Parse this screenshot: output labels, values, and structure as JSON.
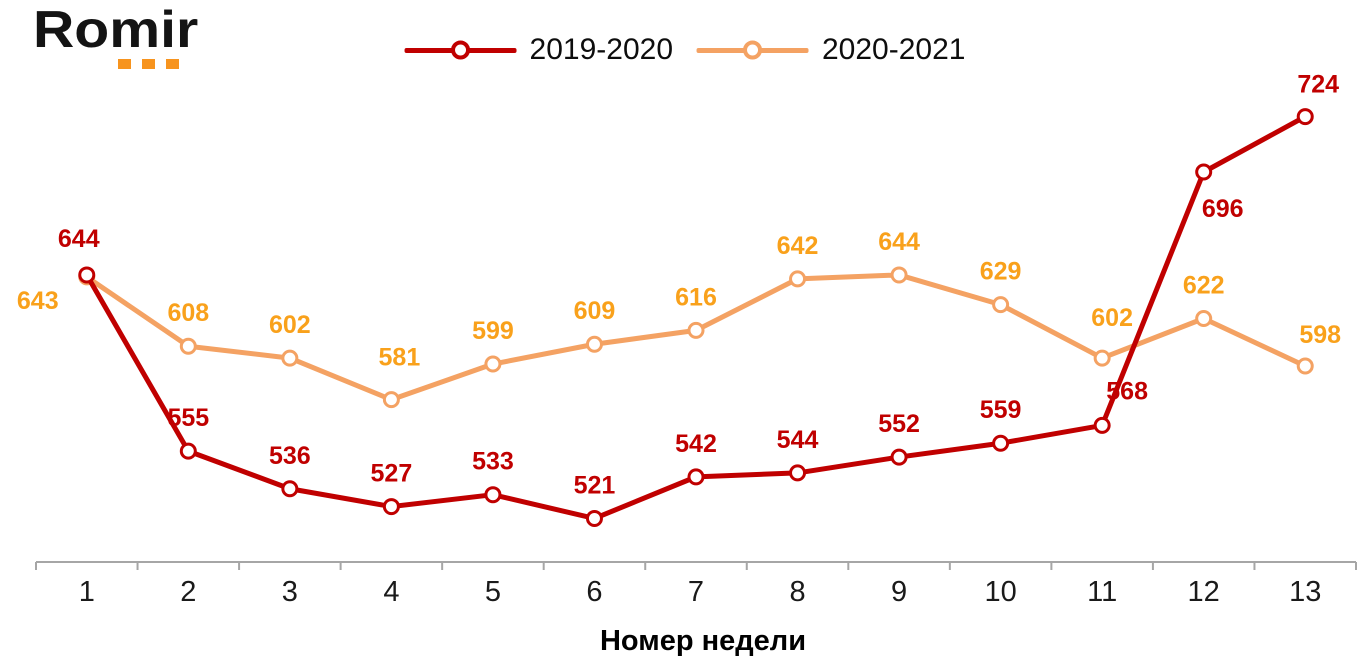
{
  "logo": {
    "text": "Romir",
    "dot_color": "#F7941E"
  },
  "chart_data": {
    "type": "line",
    "title": "",
    "x": [
      1,
      2,
      3,
      4,
      5,
      6,
      7,
      8,
      9,
      10,
      11,
      12,
      13
    ],
    "xlabel": "Номер недели",
    "ylabel": "",
    "ylim": [
      499,
      745
    ],
    "grid": false,
    "legend_position": "top-center",
    "data_labels": true,
    "axis_color": "#A6A6A6",
    "tick_label_color": "#1A1A1A",
    "axis_title_color": "#000000",
    "series": [
      {
        "name": "2019-2020",
        "color": "#C00000",
        "label_color": "#C00000",
        "values": [
          644,
          555,
          536,
          527,
          533,
          521,
          542,
          544,
          552,
          559,
          568,
          696,
          724
        ],
        "label_offsets": {
          "0": [
            -8,
            -37
          ],
          "10": [
            25,
            -35
          ],
          "11": [
            19,
            36
          ],
          "12": [
            13,
            -33
          ]
        }
      },
      {
        "name": "2020-2021",
        "color": "#F4A263",
        "label_color": "#F9A11B",
        "values": [
          643,
          608,
          602,
          581,
          599,
          609,
          616,
          642,
          644,
          629,
          602,
          622,
          598
        ],
        "label_offsets": {
          "0": [
            -49,
            23
          ],
          "3": [
            8,
            -43
          ],
          "10": [
            10,
            -41
          ],
          "12": [
            15,
            -32
          ]
        }
      }
    ]
  }
}
